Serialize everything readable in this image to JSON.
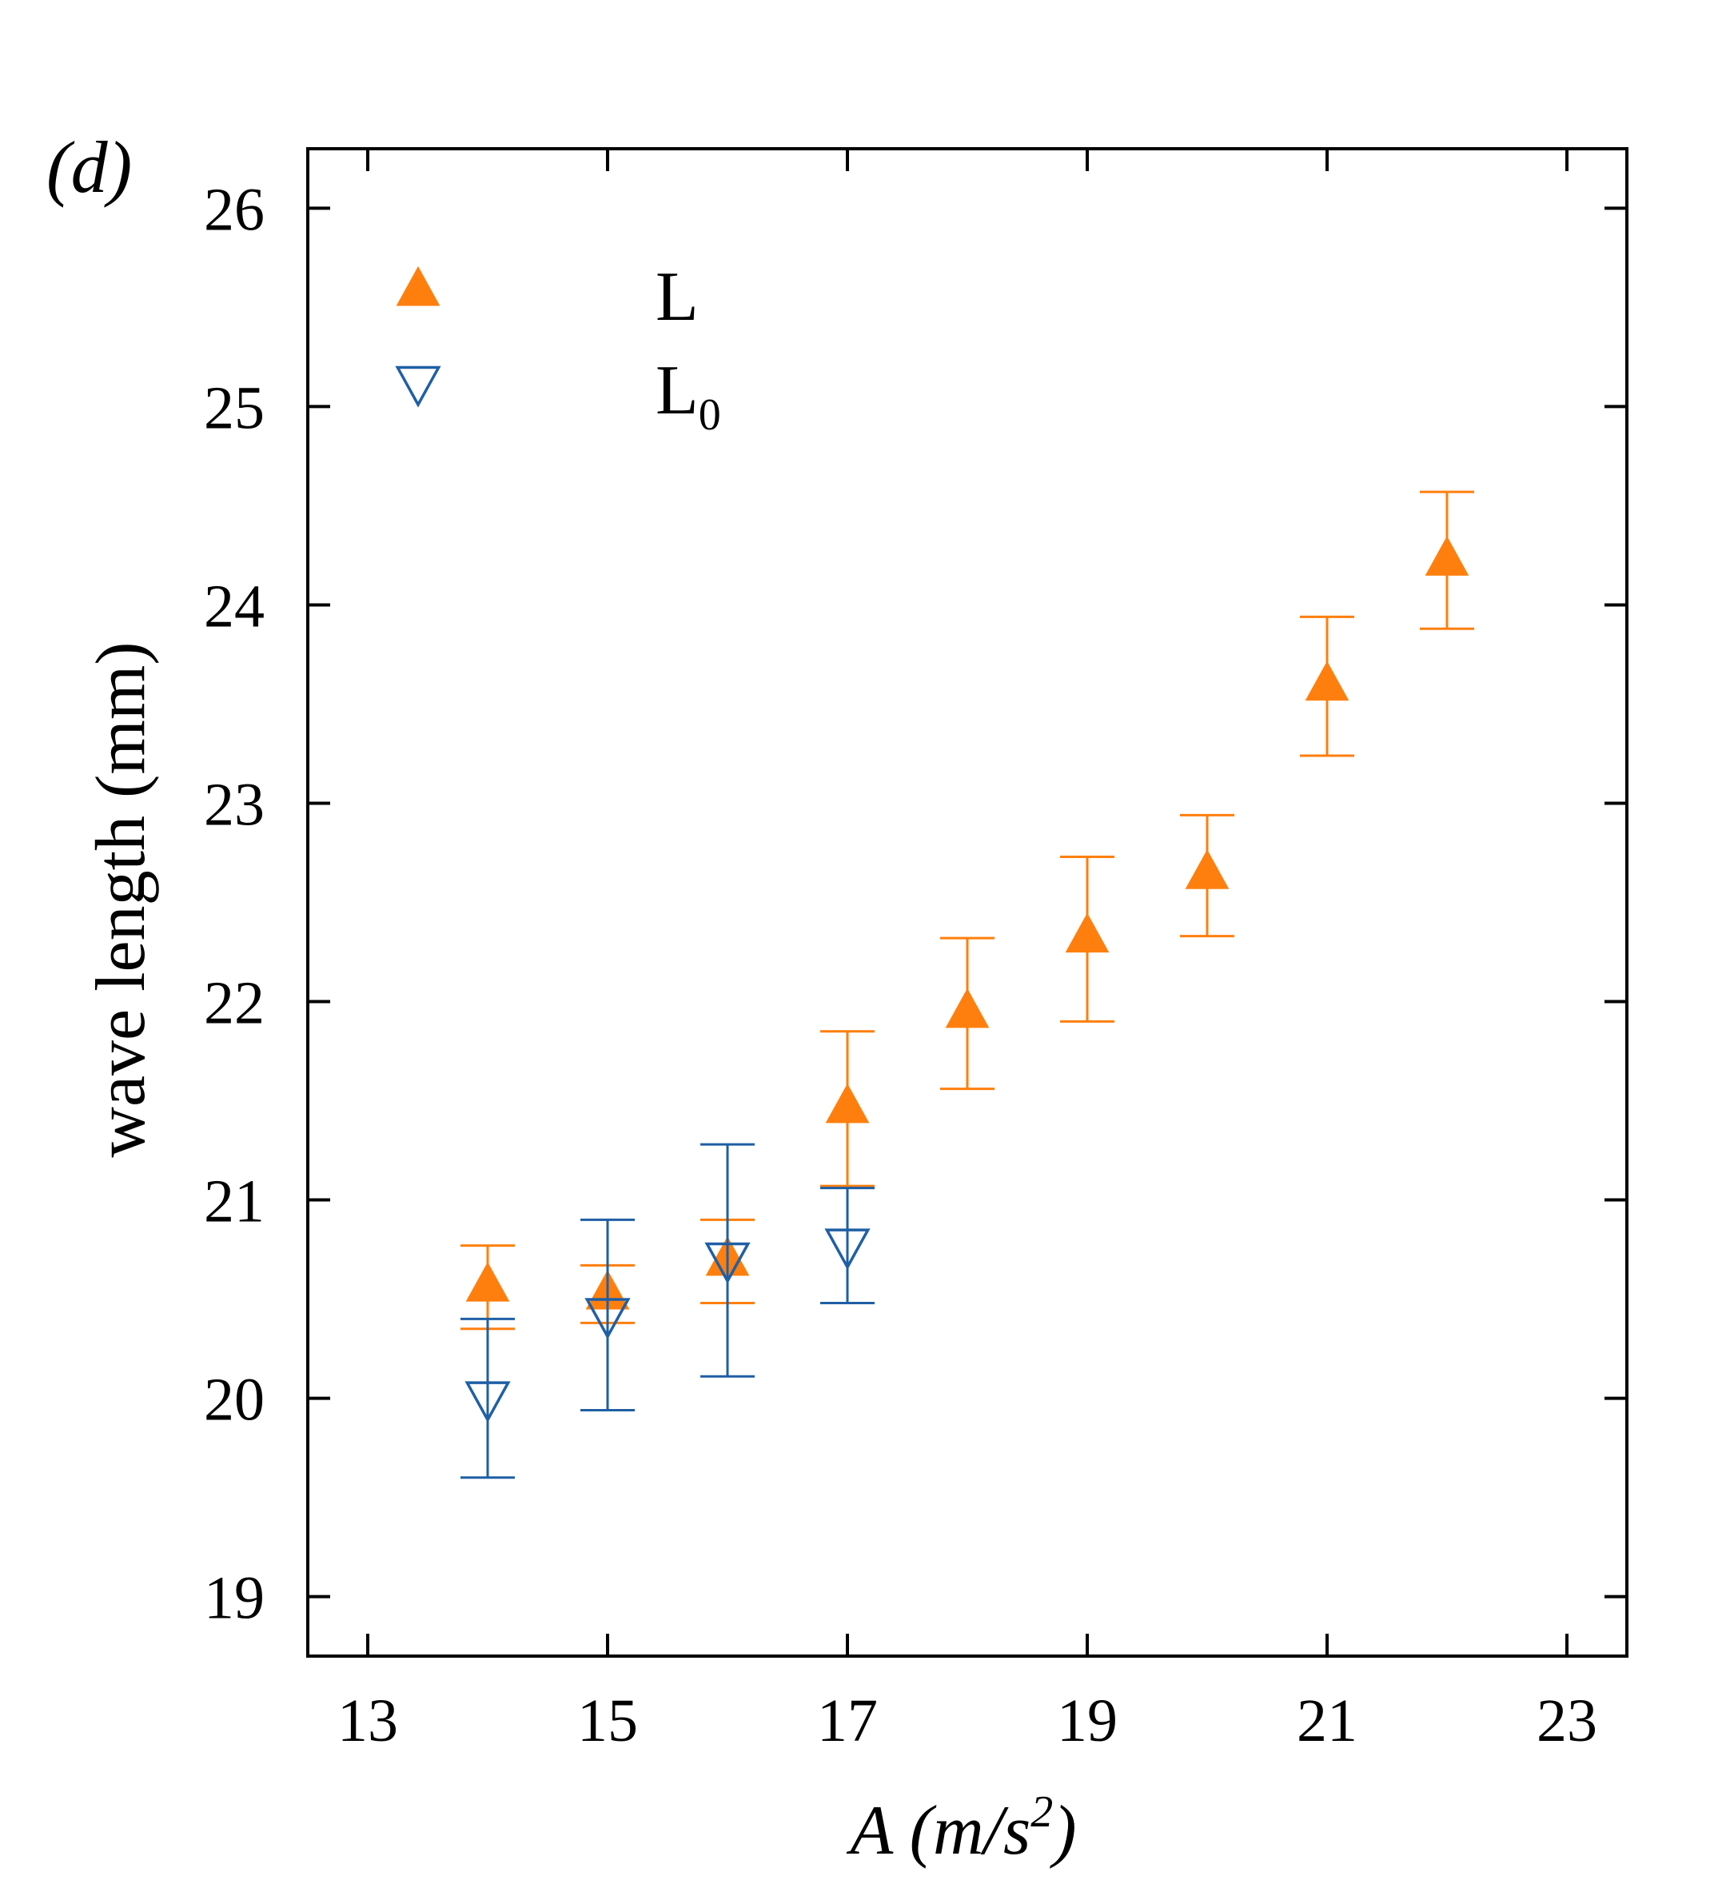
{
  "chart_data": {
    "type": "scatter",
    "panel_label": "(d)",
    "title": "",
    "xlabel": {
      "main": "A (m/s",
      "sup": "2",
      "close": ")"
    },
    "ylabel": "wave length (mm)",
    "xlim": [
      12.5,
      23.5
    ],
    "ylim": [
      18.7,
      26.3
    ],
    "xticks": [
      13,
      15,
      17,
      19,
      21,
      23
    ],
    "yticks": [
      19,
      20,
      21,
      22,
      23,
      24,
      25,
      26
    ],
    "legend_position": "top-left",
    "series": [
      {
        "name": "L",
        "legend": {
          "base": "L",
          "sub": ""
        },
        "marker": "triangle-up-filled",
        "color": "#ff7f0e",
        "points": [
          {
            "x": 14,
            "y": 20.57,
            "err_low": 20.35,
            "err_high": 20.77
          },
          {
            "x": 15,
            "y": 20.53,
            "err_low": 20.38,
            "err_high": 20.67
          },
          {
            "x": 16,
            "y": 20.7,
            "err_low": 20.48,
            "err_high": 20.9
          },
          {
            "x": 17,
            "y": 21.47,
            "err_low": 21.07,
            "err_high": 21.85
          },
          {
            "x": 18,
            "y": 21.95,
            "err_low": 21.56,
            "err_high": 22.32
          },
          {
            "x": 19,
            "y": 22.33,
            "err_low": 21.9,
            "err_high": 22.73
          },
          {
            "x": 20,
            "y": 22.65,
            "err_low": 22.33,
            "err_high": 22.94
          },
          {
            "x": 21,
            "y": 23.6,
            "err_low": 23.24,
            "err_high": 23.94
          },
          {
            "x": 22,
            "y": 24.23,
            "err_low": 23.88,
            "err_high": 24.57
          }
        ]
      },
      {
        "name": "L0",
        "legend": {
          "base": "L",
          "sub": "0"
        },
        "marker": "triangle-down-open",
        "color": "#1f5fa5",
        "points": [
          {
            "x": 14,
            "y": 20.0,
            "err_low": 19.6,
            "err_high": 20.4
          },
          {
            "x": 15,
            "y": 20.42,
            "err_low": 19.94,
            "err_high": 20.9
          },
          {
            "x": 16,
            "y": 20.7,
            "err_low": 20.11,
            "err_high": 21.28
          },
          {
            "x": 17,
            "y": 20.77,
            "err_low": 20.48,
            "err_high": 21.06
          }
        ]
      }
    ]
  }
}
